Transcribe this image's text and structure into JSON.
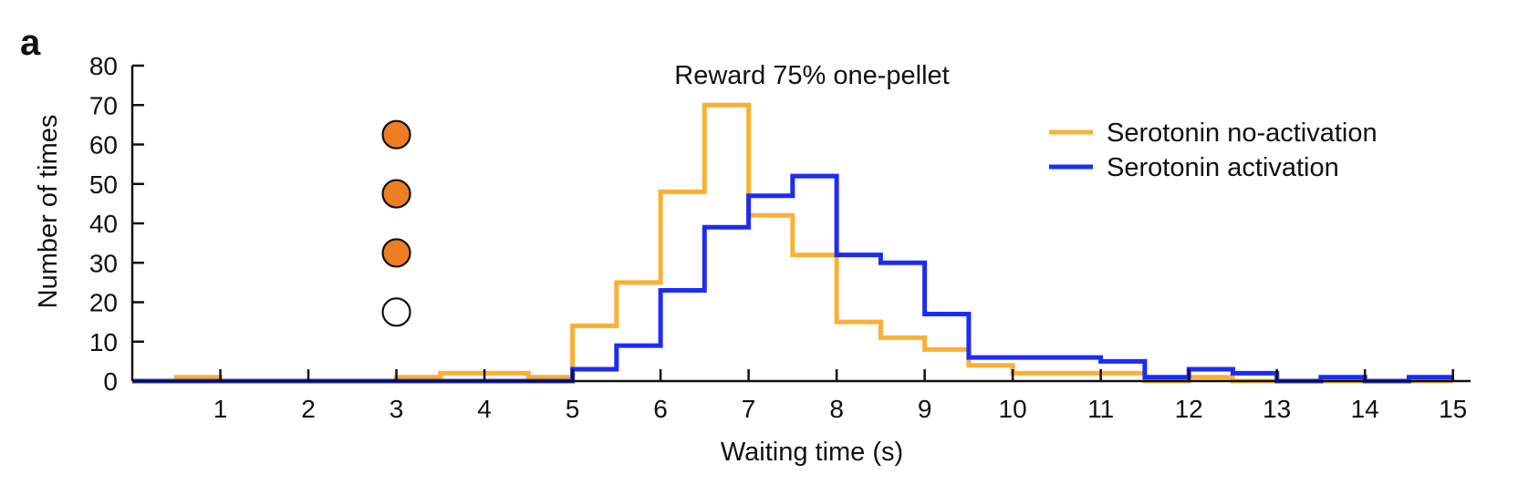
{
  "panel_label": "a",
  "colors": {
    "no_activation": "#fbb033",
    "activation": "#1c2cf5",
    "activation_label": "#3a2f96",
    "dot_fill": "#ef7d22",
    "axis": "#111111"
  },
  "chart_data": {
    "type": "line",
    "step": true,
    "title": "Reward 75% one-pellet",
    "xlabel": "Waiting time (s)",
    "ylabel": "Number of times",
    "xlim": [
      0,
      15.2
    ],
    "ylim": [
      0,
      80
    ],
    "xticks": [
      1,
      2,
      3,
      4,
      5,
      6,
      7,
      8,
      9,
      10,
      11,
      12,
      13,
      14,
      15
    ],
    "yticks": [
      0,
      10,
      20,
      30,
      40,
      50,
      60,
      70,
      80
    ],
    "bin_edges": [
      0,
      0.5,
      1,
      1.5,
      2,
      2.5,
      3,
      3.5,
      4,
      4.5,
      5,
      5.5,
      6,
      6.5,
      7,
      7.5,
      8,
      8.5,
      9,
      9.5,
      10,
      10.5,
      11,
      11.5,
      12,
      12.5,
      13,
      13.5,
      14,
      14.5,
      15
    ],
    "series": [
      {
        "name": "Serotonin no-activation",
        "color_key": "no_activation",
        "values": [
          0,
          1,
          0,
          0,
          0,
          0,
          1,
          2,
          2,
          1,
          14,
          25,
          48,
          70,
          42,
          32,
          15,
          11,
          8,
          4,
          2,
          2,
          2,
          0,
          1,
          0,
          0,
          0,
          0,
          0
        ]
      },
      {
        "name": "Serotonin activation",
        "color_key": "activation",
        "values": [
          0,
          0,
          0,
          0,
          0,
          0,
          0,
          0,
          0,
          0,
          3,
          9,
          23,
          39,
          47,
          52,
          32,
          30,
          17,
          6,
          6,
          6,
          5,
          1,
          3,
          2,
          0,
          1,
          0,
          1
        ]
      }
    ],
    "markers": [
      {
        "x": 3,
        "y": 62.5,
        "filled": true
      },
      {
        "x": 3,
        "y": 47.5,
        "filled": true
      },
      {
        "x": 3,
        "y": 32.5,
        "filled": true
      },
      {
        "x": 3,
        "y": 17.5,
        "filled": false
      }
    ],
    "legend": {
      "position": "top-right",
      "entries": [
        "Serotonin no-activation",
        "Serotonin activation"
      ]
    },
    "grid": false
  }
}
